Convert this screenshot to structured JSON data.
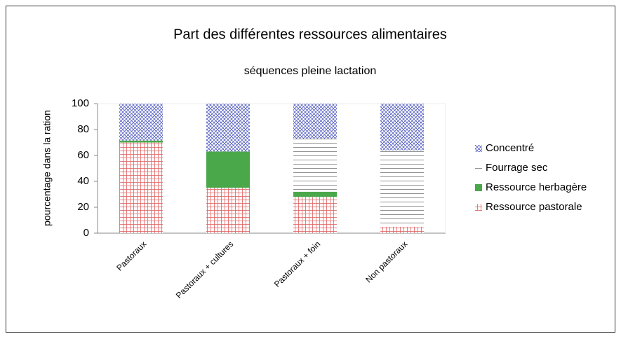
{
  "chart_data": {
    "type": "stacked_bar",
    "title": "Part des différentes ressources alimentaires",
    "subtitle": "séquences pleine lactation",
    "y_label": "pourcentage dans la ration",
    "categories": [
      "Pastoraux",
      "Pastoraux + cultures",
      "Pastoraux + foin",
      "Non pastoraux"
    ],
    "series": [
      {
        "name": "Ressource pastorale",
        "color": "#e06060",
        "pattern": "grid",
        "values": [
          70,
          35,
          28,
          5
        ]
      },
      {
        "name": "Ressource herbagère",
        "color": "#4aa84a",
        "pattern": "solid",
        "values": [
          1.5,
          28,
          4,
          0
        ]
      },
      {
        "name": "Fourrage sec",
        "color": "#777777",
        "pattern": "horizontal",
        "values": [
          0,
          0,
          41,
          59
        ]
      },
      {
        "name": "Concentré",
        "color": "#5560c0",
        "pattern": "crosshatch",
        "values": [
          28.5,
          37,
          27,
          36
        ]
      }
    ],
    "ylim": [
      0,
      100
    ],
    "yticks": [
      0,
      20,
      40,
      60,
      80,
      100
    ],
    "grid": false,
    "legend": "right"
  }
}
